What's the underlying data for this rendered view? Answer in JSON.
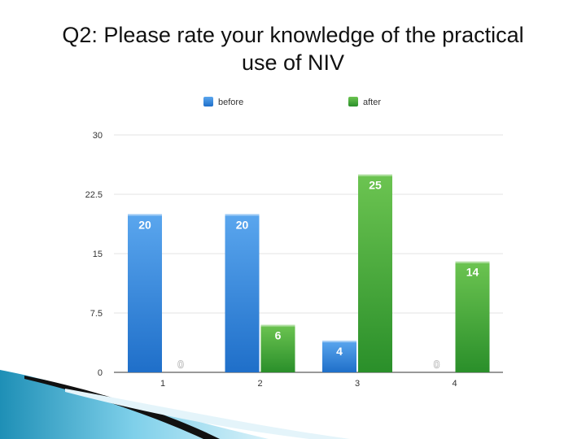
{
  "slide": {
    "title_line1": "Q2: Please rate your knowledge of the practical",
    "title_line2": "use of NIV"
  },
  "chart_data": {
    "type": "bar",
    "categories": [
      "1",
      "2",
      "3",
      "4"
    ],
    "series": [
      {
        "name": "before",
        "values": [
          20,
          20,
          4,
          0
        ],
        "color": "#3b8fe0"
      },
      {
        "name": "after",
        "values": [
          0,
          6,
          25,
          14
        ],
        "color": "#3aa83a"
      }
    ],
    "title": "Q2: Please rate your knowledge of the practical use of NIV",
    "xlabel": "",
    "ylabel": "",
    "ylim": [
      0,
      30
    ],
    "yticks": [
      "0",
      "7.5",
      "15",
      "22.5",
      "30"
    ],
    "grid": true,
    "legend": "top"
  }
}
